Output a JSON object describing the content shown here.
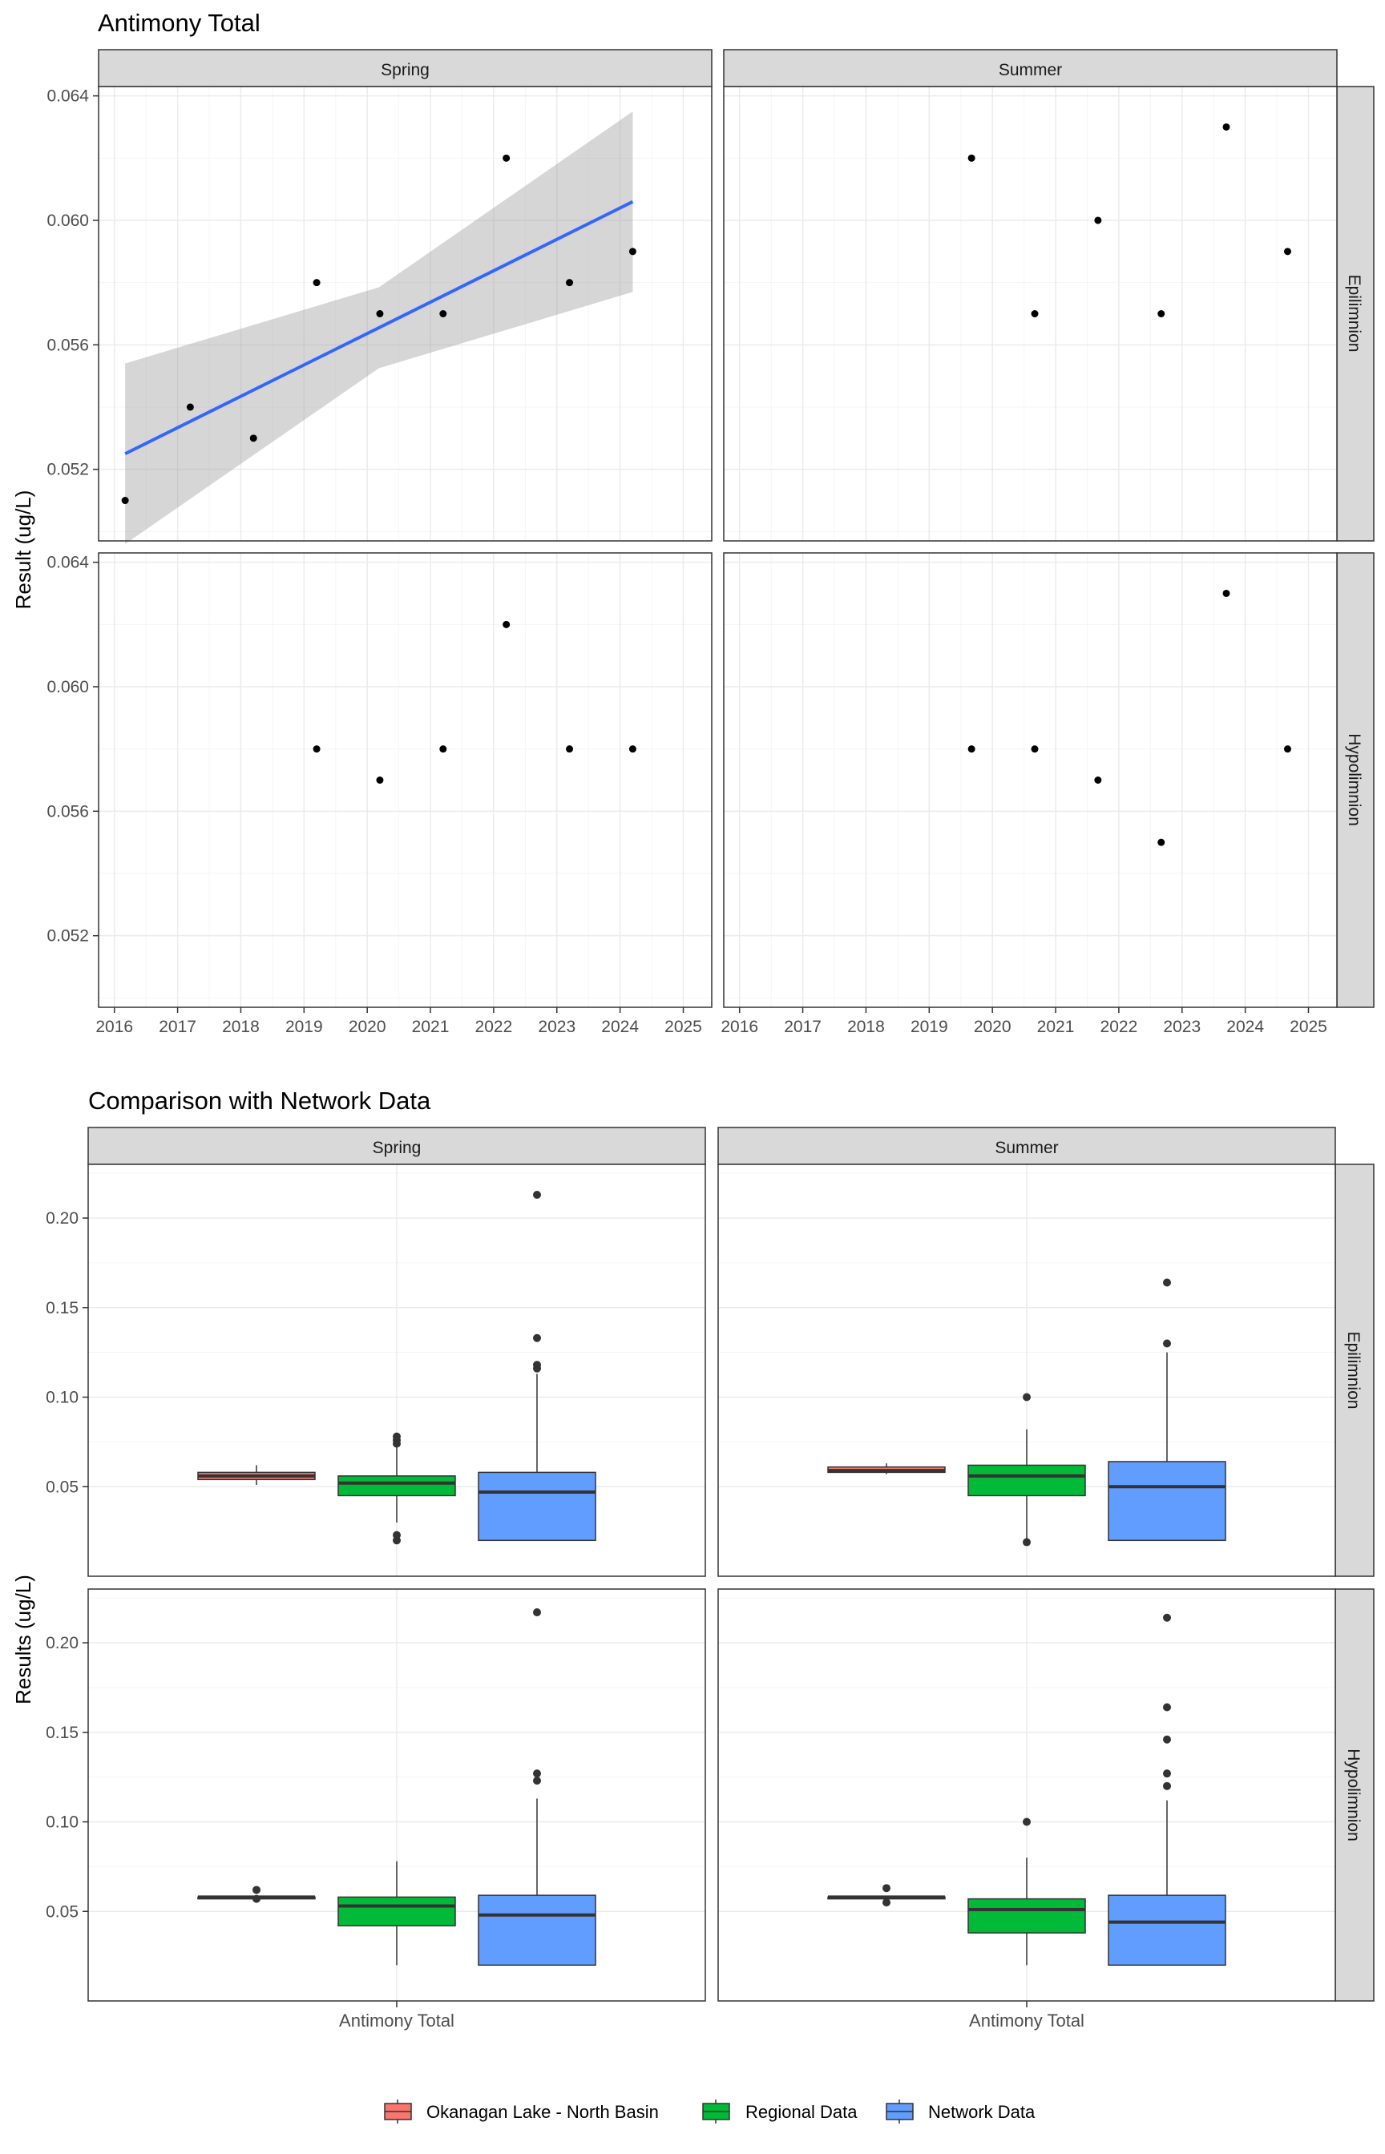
{
  "chart_data": [
    {
      "type": "scatter",
      "title": "Antimony Total",
      "xlabel": "",
      "ylabel": "Result (ug/L)",
      "xlim": [
        2015.75,
        2025.45
      ],
      "ylim": [
        0.0497,
        0.0643
      ],
      "x_ticks": [
        2016,
        2017,
        2018,
        2019,
        2020,
        2021,
        2022,
        2023,
        2024,
        2025
      ],
      "x_tick_labels": [
        "2016",
        "2017",
        "2018",
        "2019",
        "2020",
        "2021",
        "2022",
        "2023",
        "2024",
        "2025"
      ],
      "y_ticks": [
        0.052,
        0.056,
        0.06,
        0.064
      ],
      "y_tick_labels": [
        "0.052",
        "0.056",
        "0.060",
        "0.064"
      ],
      "columns": [
        "Spring",
        "Summer"
      ],
      "rows": [
        "Epilimnion",
        "Hypolimnion"
      ],
      "grid": true,
      "panels": [
        {
          "season": "Spring",
          "layer": "Epilimnion",
          "points": [
            [
              2016.17,
              0.051
            ],
            [
              2017.2,
              0.054
            ],
            [
              2018.2,
              0.053
            ],
            [
              2019.2,
              0.058
            ],
            [
              2020.2,
              0.057
            ],
            [
              2021.2,
              0.057
            ],
            [
              2022.2,
              0.062
            ],
            [
              2023.2,
              0.058
            ],
            [
              2024.2,
              0.059
            ]
          ],
          "trend": {
            "x": [
              2016.17,
              2024.2
            ],
            "y": [
              0.0525,
              0.0606
            ],
            "lower": [
              0.0496,
              0.0577
            ],
            "upper": [
              0.0554,
              0.0635
            ]
          }
        },
        {
          "season": "Summer",
          "layer": "Epilimnion",
          "points": [
            [
              2019.67,
              0.062
            ],
            [
              2020.67,
              0.057
            ],
            [
              2021.67,
              0.06
            ],
            [
              2022.67,
              0.057
            ],
            [
              2023.7,
              0.063
            ],
            [
              2024.67,
              0.059
            ]
          ]
        },
        {
          "season": "Spring",
          "layer": "Hypolimnion",
          "points": [
            [
              2019.2,
              0.058
            ],
            [
              2020.2,
              0.057
            ],
            [
              2021.2,
              0.058
            ],
            [
              2022.2,
              0.062
            ],
            [
              2023.2,
              0.058
            ],
            [
              2024.2,
              0.058
            ]
          ]
        },
        {
          "season": "Summer",
          "layer": "Hypolimnion",
          "points": [
            [
              2019.67,
              0.058
            ],
            [
              2020.67,
              0.058
            ],
            [
              2021.67,
              0.057
            ],
            [
              2022.67,
              0.055
            ],
            [
              2023.7,
              0.063
            ],
            [
              2024.67,
              0.058
            ]
          ]
        }
      ]
    },
    {
      "type": "box",
      "title": "Comparison with Network Data",
      "xlabel": "",
      "ylabel": "Results (ug/L)",
      "category": "Antimony Total",
      "ylim": [
        0.0,
        0.23
      ],
      "y_ticks": [
        0.05,
        0.1,
        0.15,
        0.2
      ],
      "y_tick_labels": [
        "0.05",
        "0.10",
        "0.15",
        "0.20"
      ],
      "columns": [
        "Spring",
        "Summer"
      ],
      "rows": [
        "Epilimnion",
        "Hypolimnion"
      ],
      "grid": true,
      "legend_position": "bottom",
      "legend": [
        {
          "name": "Okanagan Lake - North Basin",
          "color": "#F8766D"
        },
        {
          "name": "Regional Data",
          "color": "#00BA38"
        },
        {
          "name": "Network Data",
          "color": "#619CFF"
        }
      ],
      "panels": [
        {
          "season": "Spring",
          "layer": "Epilimnion",
          "boxes": [
            {
              "group": "Okanagan Lake - North Basin",
              "lower": 0.051,
              "q1": 0.054,
              "median": 0.056,
              "q3": 0.058,
              "upper": 0.062,
              "outliers": []
            },
            {
              "group": "Regional Data",
              "lower": 0.03,
              "q1": 0.045,
              "median": 0.052,
              "q3": 0.056,
              "upper": 0.072,
              "outliers": [
                0.074,
                0.076,
                0.078,
                0.02,
                0.023
              ]
            },
            {
              "group": "Network Data",
              "lower": 0.02,
              "q1": 0.02,
              "median": 0.047,
              "q3": 0.058,
              "upper": 0.113,
              "outliers": [
                0.116,
                0.118,
                0.133,
                0.213
              ]
            }
          ]
        },
        {
          "season": "Summer",
          "layer": "Epilimnion",
          "boxes": [
            {
              "group": "Okanagan Lake - North Basin",
              "lower": 0.057,
              "q1": 0.058,
              "median": 0.059,
              "q3": 0.061,
              "upper": 0.063,
              "outliers": []
            },
            {
              "group": "Regional Data",
              "lower": 0.02,
              "q1": 0.045,
              "median": 0.056,
              "q3": 0.062,
              "upper": 0.082,
              "outliers": [
                0.1,
                0.019
              ]
            },
            {
              "group": "Network Data",
              "lower": 0.02,
              "q1": 0.02,
              "median": 0.05,
              "q3": 0.064,
              "upper": 0.125,
              "outliers": [
                0.13,
                0.164
              ]
            }
          ]
        },
        {
          "season": "Spring",
          "layer": "Hypolimnion",
          "boxes": [
            {
              "group": "Okanagan Lake - North Basin",
              "lower": 0.058,
              "q1": 0.057,
              "median": 0.058,
              "q3": 0.058,
              "upper": 0.058,
              "outliers": [
                0.062,
                0.057
              ]
            },
            {
              "group": "Regional Data",
              "lower": 0.02,
              "q1": 0.042,
              "median": 0.053,
              "q3": 0.058,
              "upper": 0.078,
              "outliers": []
            },
            {
              "group": "Network Data",
              "lower": 0.02,
              "q1": 0.02,
              "median": 0.048,
              "q3": 0.059,
              "upper": 0.113,
              "outliers": [
                0.123,
                0.127,
                0.217
              ]
            }
          ]
        },
        {
          "season": "Summer",
          "layer": "Hypolimnion",
          "boxes": [
            {
              "group": "Okanagan Lake - North Basin",
              "lower": 0.058,
              "q1": 0.057,
              "median": 0.058,
              "q3": 0.058,
              "upper": 0.058,
              "outliers": [
                0.063,
                0.055
              ]
            },
            {
              "group": "Regional Data",
              "lower": 0.02,
              "q1": 0.038,
              "median": 0.051,
              "q3": 0.057,
              "upper": 0.08,
              "outliers": [
                0.1
              ]
            },
            {
              "group": "Network Data",
              "lower": 0.02,
              "q1": 0.02,
              "median": 0.044,
              "q3": 0.059,
              "upper": 0.112,
              "outliers": [
                0.12,
                0.127,
                0.146,
                0.164,
                0.214
              ]
            }
          ]
        }
      ]
    }
  ],
  "colors": {
    "trend_line": "#3366FF",
    "ribbon": "#999999",
    "strip": "#D9D9D9",
    "grid_major": "#EBEBEB",
    "grid_minor": "#F5F5F5",
    "point": "#000000",
    "outlier": "#333333"
  }
}
